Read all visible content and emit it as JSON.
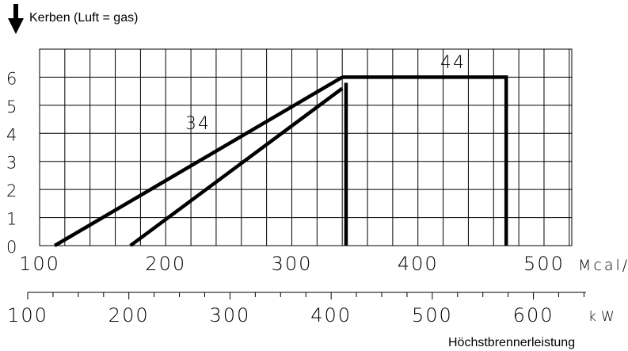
{
  "chart_data": {
    "type": "line",
    "title": "Kerben (Luft = gas)",
    "footer_label": "Höchstbrennerleistung",
    "x_unit_primary": "Mcal/h",
    "x_unit_secondary": "kW",
    "xlim": [
      100,
      522
    ],
    "ylim": [
      0,
      7
    ],
    "x_major_ticks": [
      100,
      200,
      300,
      400,
      500
    ],
    "x_gridlines": [
      100,
      120,
      140,
      160,
      180,
      200,
      220,
      240,
      260,
      280,
      300,
      320,
      340,
      360,
      380,
      400,
      420,
      440,
      460,
      480,
      500,
      520
    ],
    "y_ticks": [
      0,
      1,
      2,
      3,
      4,
      5,
      6
    ],
    "kw_axis": {
      "range": [
        100,
        652
      ],
      "major_ticks": [
        100,
        200,
        300,
        400,
        500,
        600
      ],
      "minor_step": 25
    },
    "series": [
      {
        "name": "34",
        "points": [
          [
            112,
            0
          ],
          [
            340,
            6
          ]
        ]
      },
      {
        "name": "",
        "points": [
          [
            172,
            0
          ],
          [
            340,
            5.6
          ]
        ]
      },
      {
        "name": "",
        "points": [
          [
            343,
            0
          ],
          [
            343,
            5.8
          ]
        ]
      },
      {
        "name": "44",
        "points": [
          [
            340,
            6
          ],
          [
            349,
            6
          ],
          [
            470,
            6
          ],
          [
            470,
            0
          ]
        ]
      }
    ],
    "grid": true,
    "legend": "none"
  },
  "icons": {
    "arrow": "down-arrow-icon"
  }
}
